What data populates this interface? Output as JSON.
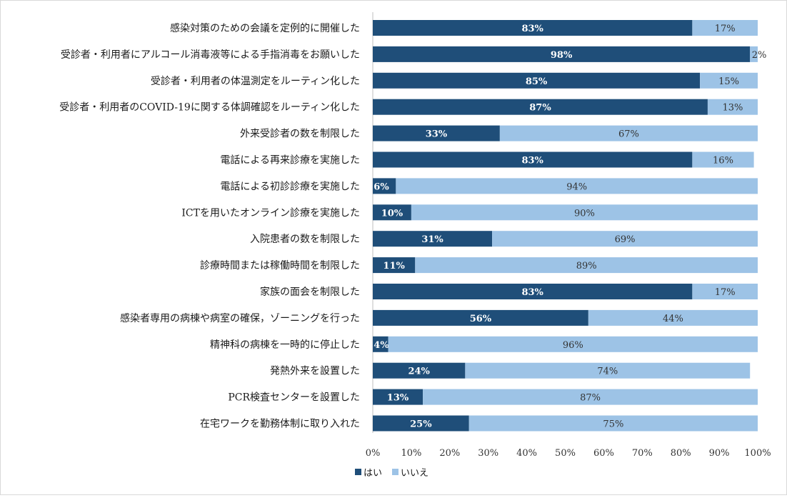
{
  "chart_data": {
    "type": "bar",
    "orientation": "horizontal",
    "stacked": "percent",
    "categories": [
      "感染対策のための会議を定例的に開催した",
      "受診者・利用者にアルコール消毒液等による手指消毒をお願いした",
      "受診者・利用者の体温測定をルーティン化した",
      "受診者・利用者のCOVID-19に関する体調確認をルーティン化した",
      "外来受診者の数を制限した",
      "電話による再来診療を実施した",
      "電話による初診診療を実施した",
      "ICTを用いたオンライン診療を実施した",
      "入院患者の数を制限した",
      "診療時間または稼働時間を制限した",
      "家族の面会を制限した",
      "感染者専用の病棟や病室の確保，ゾーニングを行った",
      "精神科の病棟を一時的に停止した",
      "発熱外来を設置した",
      "PCR検査センターを設置した",
      "在宅ワークを勤務体制に取り入れた"
    ],
    "series": [
      {
        "name": "はい",
        "color": "#1f4e79",
        "values": [
          83,
          98,
          85,
          87,
          33,
          83,
          6,
          10,
          31,
          11,
          83,
          56,
          4,
          24,
          13,
          25
        ],
        "labels": [
          "83%",
          "98%",
          "85%",
          "87%",
          "33%",
          "83%",
          "6%",
          "10%",
          "31%",
          "11%",
          "83%",
          "56%",
          "4%",
          "24%",
          "13%",
          "25%"
        ]
      },
      {
        "name": "いいえ",
        "color": "#9dc3e6",
        "values": [
          17,
          2,
          15,
          13,
          67,
          16,
          94,
          90,
          69,
          89,
          17,
          44,
          96,
          74,
          87,
          75
        ],
        "labels": [
          "17%",
          "2%",
          "15%",
          "13%",
          "67%",
          "16%",
          "94%",
          "90%",
          "69%",
          "89%",
          "17%",
          "44%",
          "96%",
          "74%",
          "87%",
          "75%"
        ]
      }
    ],
    "x_ticks": [
      "0%",
      "10%",
      "20%",
      "30%",
      "40%",
      "50%",
      "60%",
      "70%",
      "80%",
      "90%",
      "100%"
    ],
    "xlim": [
      0,
      100
    ],
    "grid": false,
    "legend": "bottom-center"
  }
}
